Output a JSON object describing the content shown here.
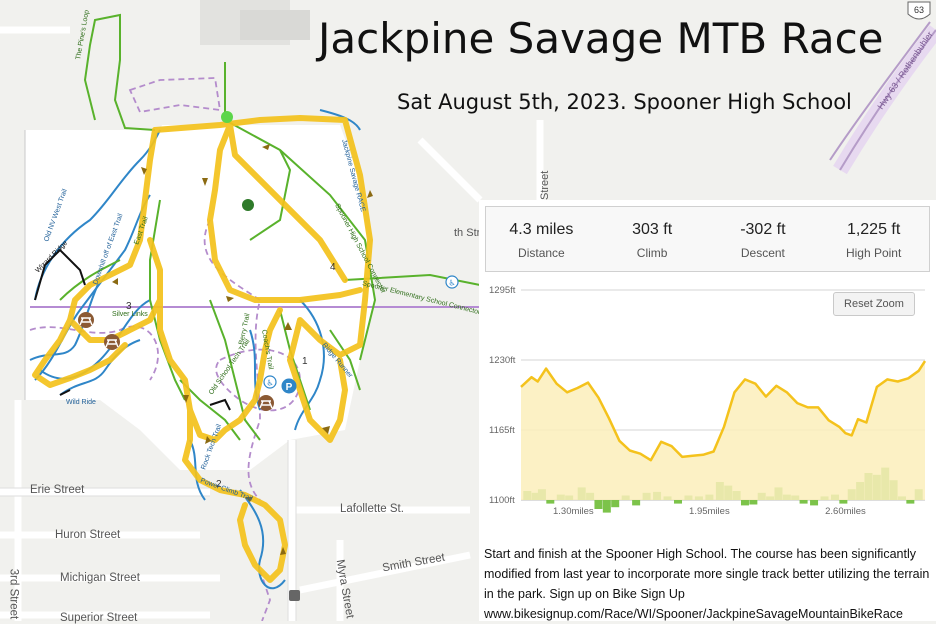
{
  "title": "Jackpine Savage MTB Race",
  "subtitle": "Sat August 5th, 2023. Spooner High School",
  "highway_shield": "63",
  "streets": {
    "erie": "Erie Street",
    "huron": "Huron Street",
    "michigan": "Michigan Street",
    "superior": "Superior Street",
    "third": "3rd Street",
    "lafollette": "Lafollette St.",
    "smith": "Smith Street",
    "myra": "Myra Street",
    "nth": "th Street",
    "street_abbr": "Street",
    "hwy_name": "Hwy 63 / Rothenbuhler"
  },
  "trail_labels": {
    "pines_loop": "The Pine's Loop",
    "old_nv_west": "Old NV West Trail",
    "wizard_ridge": "Wizard Ridge",
    "downhill_east": "Downhill off of East Trail",
    "east_trail": "East Trail",
    "silver_links": "Silver Links",
    "wild_ride": "Wild Ride",
    "hs_connector": "Spooner High School Connector",
    "jackpine_race": "Jackpine Savage RACE",
    "elementary_connector": "Spooner Elementary School Connector",
    "coach_trail": "Coach's Trail",
    "berry_trail": "Berry Trail",
    "ridge_runner": "Ridge Runner",
    "old_school_tech": "Old School Tech Trail",
    "rock_tech": "Rock Tech Trail",
    "power_climb": "Power Climb Trail"
  },
  "markers": [
    "1",
    "2",
    "3",
    "4"
  ],
  "icons": [
    "picnic-icon",
    "parking-icon",
    "accessible-icon",
    "start-marker-icon",
    "finish-marker-icon"
  ],
  "stats": [
    {
      "value": "4.3 miles",
      "label": "Distance"
    },
    {
      "value": "303 ft",
      "label": "Climb"
    },
    {
      "value": "-302 ft",
      "label": "Descent"
    },
    {
      "value": "1,225 ft",
      "label": "High Point"
    }
  ],
  "reset_zoom": "Reset Zoom",
  "description": "Start and finish at the Spooner High School. The course has been significantly modified from last year to incorporate more single track better utilizing the terrain in the park. Sign up on Bike Sign Up www.bikesignup.com/Race/WI/Spooner/JackpineSavageMountainBikeRace",
  "colors": {
    "route": "#f4c21c",
    "trail": "#59b22c",
    "water_trail": "#2f86c8",
    "grade": "#7cc34a",
    "fill": "#fbeebb"
  },
  "chart_data": {
    "type": "area",
    "title": "",
    "xlabel": "",
    "ylabel": "",
    "ylim": [
      1100,
      1295
    ],
    "y_ticks": [
      "1295ft",
      "1230ft",
      "1165ft",
      "1100ft"
    ],
    "x_ticks": [
      "1.30miles",
      "1.95miles",
      "2.60miles"
    ],
    "x_tick_values": [
      1.3,
      1.95,
      2.6
    ],
    "xlim": [
      1.05,
      2.98
    ],
    "grid": true,
    "series": [
      {
        "x": [
          1.05,
          1.1,
          1.13,
          1.17,
          1.22,
          1.27,
          1.32,
          1.37,
          1.42,
          1.47,
          1.52,
          1.57,
          1.62,
          1.67,
          1.72,
          1.77,
          1.82,
          1.87,
          1.92,
          1.97,
          2.02,
          2.07,
          2.12,
          2.17,
          2.22,
          2.27,
          2.32,
          2.37,
          2.42,
          2.47,
          2.52,
          2.57,
          2.6,
          2.63,
          2.66,
          2.7,
          2.75,
          2.8,
          2.85,
          2.9,
          2.95,
          2.98
        ],
        "y": [
          1205,
          1214,
          1210,
          1222,
          1208,
          1200,
          1204,
          1209,
          1195,
          1176,
          1155,
          1146,
          1143,
          1137,
          1154,
          1150,
          1140,
          1141,
          1142,
          1145,
          1168,
          1200,
          1212,
          1208,
          1196,
          1206,
          1200,
          1190,
          1186,
          1186,
          1174,
          1168,
          1162,
          1160,
          1175,
          1172,
          1205,
          1212,
          1210,
          1213,
          1220,
          1229
        ]
      }
    ],
    "grade_bars": [
      {
        "x": 1.08,
        "v": 10
      },
      {
        "x": 1.12,
        "v": 8
      },
      {
        "x": 1.15,
        "v": 12
      },
      {
        "x": 1.19,
        "v": -4
      },
      {
        "x": 1.24,
        "v": 6
      },
      {
        "x": 1.28,
        "v": 5
      },
      {
        "x": 1.34,
        "v": 14
      },
      {
        "x": 1.38,
        "v": 8
      },
      {
        "x": 1.42,
        "v": -10
      },
      {
        "x": 1.46,
        "v": -14
      },
      {
        "x": 1.5,
        "v": -8
      },
      {
        "x": 1.55,
        "v": 5
      },
      {
        "x": 1.6,
        "v": -6
      },
      {
        "x": 1.65,
        "v": 8
      },
      {
        "x": 1.7,
        "v": 9
      },
      {
        "x": 1.75,
        "v": 4
      },
      {
        "x": 1.8,
        "v": -4
      },
      {
        "x": 1.85,
        "v": 5
      },
      {
        "x": 1.9,
        "v": 4
      },
      {
        "x": 1.95,
        "v": 6
      },
      {
        "x": 2.0,
        "v": 20
      },
      {
        "x": 2.04,
        "v": 16
      },
      {
        "x": 2.08,
        "v": 10
      },
      {
        "x": 2.12,
        "v": -6
      },
      {
        "x": 2.16,
        "v": -5
      },
      {
        "x": 2.2,
        "v": 8
      },
      {
        "x": 2.24,
        "v": 4
      },
      {
        "x": 2.28,
        "v": 14
      },
      {
        "x": 2.32,
        "v": 6
      },
      {
        "x": 2.36,
        "v": 5
      },
      {
        "x": 2.4,
        "v": -4
      },
      {
        "x": 2.45,
        "v": -6
      },
      {
        "x": 2.5,
        "v": 4
      },
      {
        "x": 2.55,
        "v": 6
      },
      {
        "x": 2.59,
        "v": -4
      },
      {
        "x": 2.63,
        "v": 12
      },
      {
        "x": 2.67,
        "v": 20
      },
      {
        "x": 2.71,
        "v": 30
      },
      {
        "x": 2.75,
        "v": 28
      },
      {
        "x": 2.79,
        "v": 36
      },
      {
        "x": 2.83,
        "v": 22
      },
      {
        "x": 2.87,
        "v": 4
      },
      {
        "x": 2.91,
        "v": -4
      },
      {
        "x": 2.95,
        "v": 12
      }
    ]
  }
}
